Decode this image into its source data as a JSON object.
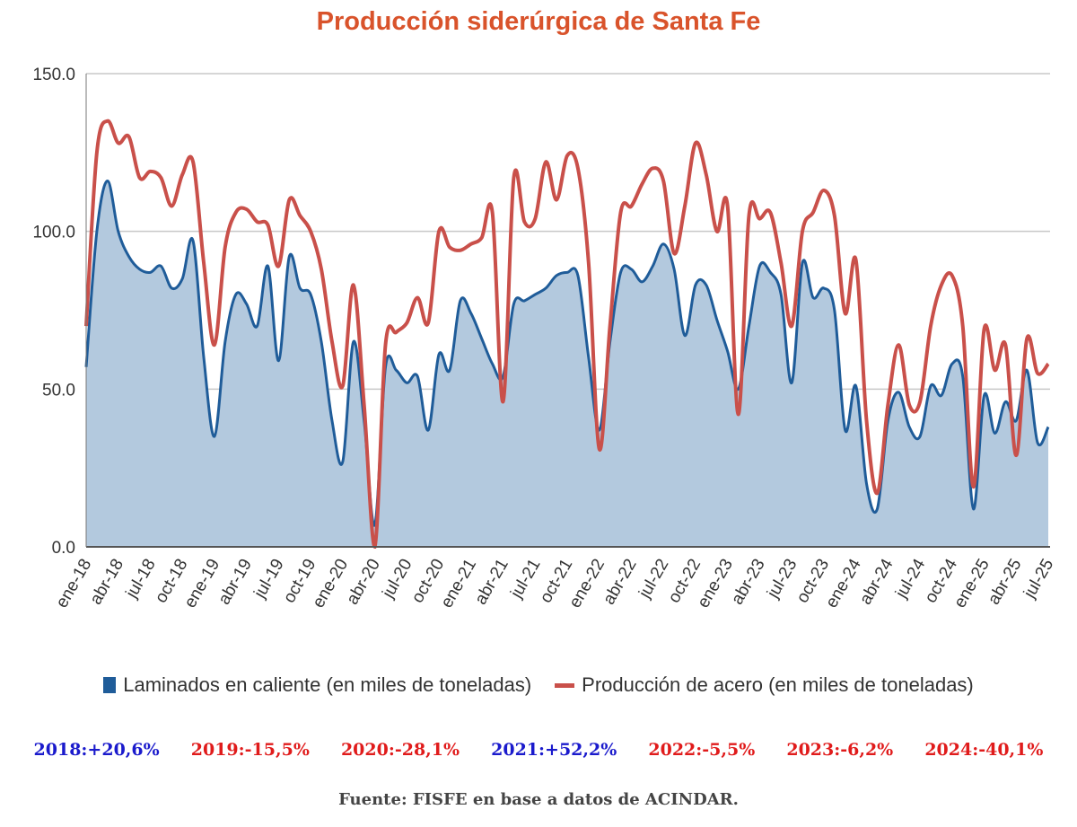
{
  "chart_data": {
    "type": "area",
    "title": "Producción siderúrgica de Santa Fe",
    "xlabel": "",
    "ylabel": "",
    "ylim": [
      0,
      150
    ],
    "yticks": [
      "0.0",
      "50.0",
      "100.0",
      "150.0"
    ],
    "ytick_values": [
      0,
      50,
      100,
      150
    ],
    "grid": true,
    "legend_position": "bottom",
    "x_tick_labels": [
      "ene-18",
      "abr-18",
      "jul-18",
      "oct-18",
      "ene-19",
      "abr-19",
      "jul-19",
      "oct-19",
      "ene-20",
      "abr-20",
      "jul-20",
      "oct-20",
      "ene-21",
      "abr-21",
      "jul-21",
      "oct-21",
      "ene-22",
      "abr-22",
      "jul-22",
      "oct-22",
      "ene-23",
      "abr-23",
      "jul-23",
      "oct-23",
      "ene-24",
      "abr-24",
      "jul-24",
      "oct-24",
      "ene-25",
      "abr-25",
      "jul-25"
    ],
    "x_start": "ene-18",
    "x_end": "jul-25",
    "series": [
      {
        "name": "Laminados en caliente (en miles de toneladas)",
        "style": "area",
        "color": "#1f5c99",
        "fill": "#b3c9de",
        "values": [
          57,
          100,
          116,
          100,
          92,
          88,
          87,
          89,
          82,
          85,
          97,
          60,
          35,
          65,
          80,
          77,
          70,
          89,
          59,
          92,
          82,
          80,
          65,
          40,
          27,
          65,
          40,
          7,
          57,
          56,
          52,
          54,
          37,
          61,
          56,
          78,
          74,
          66,
          58,
          54,
          77,
          78,
          80,
          82,
          86,
          87,
          86,
          60,
          37,
          65,
          87,
          88,
          84,
          89,
          96,
          88,
          67,
          83,
          83,
          72,
          62,
          50,
          70,
          89,
          87,
          80,
          52,
          90,
          79,
          82,
          75,
          37,
          51,
          20,
          12,
          40,
          49,
          38,
          35,
          51,
          48,
          58,
          54,
          12,
          48,
          36,
          46,
          40,
          56,
          33,
          38
        ]
      },
      {
        "name": "Producción de acero (en miles de toneladas)",
        "style": "line",
        "color": "#c9504a",
        "values": [
          70,
          125,
          135,
          128,
          130,
          117,
          119,
          117,
          108,
          118,
          122,
          90,
          64,
          95,
          106,
          107,
          103,
          102,
          89,
          110,
          105,
          100,
          88,
          65,
          51,
          83,
          45,
          0,
          64,
          68,
          71,
          79,
          71,
          100,
          95,
          94,
          96,
          98,
          106,
          46,
          117,
          103,
          104,
          122,
          110,
          124,
          120,
          90,
          31,
          70,
          106,
          108,
          115,
          120,
          116,
          93,
          108,
          128,
          118,
          100,
          108,
          42,
          105,
          104,
          106,
          90,
          70,
          100,
          106,
          113,
          105,
          74,
          91,
          40,
          17,
          45,
          64,
          45,
          46,
          70,
          83,
          86,
          70,
          19,
          69,
          56,
          64,
          29,
          66,
          55,
          58
        ]
      }
    ]
  },
  "annual_changes": [
    {
      "label": "2018:+20,6%",
      "color": "#1a1acc"
    },
    {
      "label": "2019:-15,5%",
      "color": "#e01b1b"
    },
    {
      "label": "2020:-28,1%",
      "color": "#e01b1b"
    },
    {
      "label": "2021:+52,2%",
      "color": "#1a1acc"
    },
    {
      "label": "2022:-5,5%",
      "color": "#e01b1b"
    },
    {
      "label": "2023:-6,2%",
      "color": "#e01b1b"
    },
    {
      "label": "2024:-40,1%",
      "color": "#e01b1b"
    }
  ],
  "source": "Fuente: FISFE en base a datos de ACINDAR."
}
